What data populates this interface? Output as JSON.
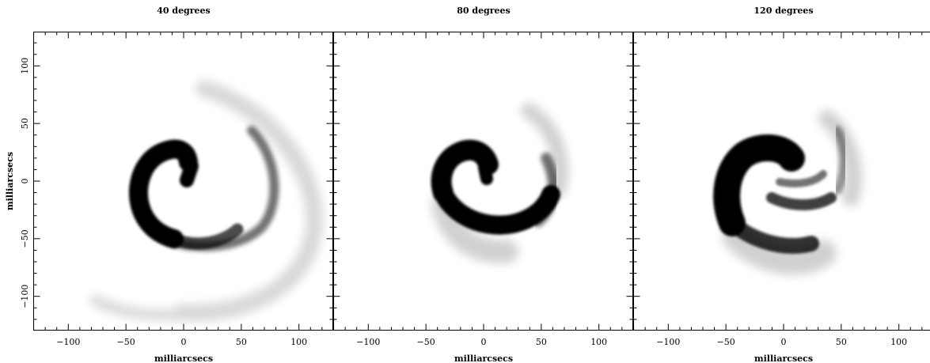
{
  "figure": {
    "panels": [
      {
        "title": "40 degrees",
        "xlabel": "milliarcsecs",
        "ylabel": "milliarcsecs"
      },
      {
        "title": "80 degrees",
        "xlabel": "milliarcsecs",
        "ylabel": ""
      },
      {
        "title": "120 degrees",
        "xlabel": "milliarcsecs",
        "ylabel": ""
      }
    ],
    "x_ticks": [
      -100,
      -50,
      0,
      50,
      100
    ],
    "y_ticks": [
      100,
      50,
      0,
      -50,
      -100
    ],
    "x_range": [
      -130,
      130
    ],
    "y_range": [
      -130,
      130
    ],
    "colormap": "grayscale-inverted",
    "ink_color": "#000000",
    "background_color": "#ffffff"
  }
}
